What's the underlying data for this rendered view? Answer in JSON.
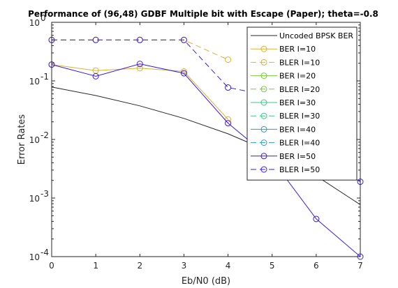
{
  "chart_data": {
    "type": "line",
    "title": "Performance of (96,48) GDBF Multiple bit with Escape (Paper); theta=-0.8",
    "xlabel": "Eb/N0 (dB)",
    "ylabel": "Error Rates",
    "x_scale": "linear",
    "y_scale": "log",
    "xlim": [
      0,
      7
    ],
    "ylim": [
      0.0001,
      1
    ],
    "x_ticks": [
      "0",
      "1",
      "2",
      "3",
      "4",
      "5",
      "6",
      "7"
    ],
    "y_ticks": [
      {
        "base": "10",
        "exp": "0"
      },
      {
        "base": "10",
        "exp": "-1"
      },
      {
        "base": "10",
        "exp": "-2"
      },
      {
        "base": "10",
        "exp": "-3"
      },
      {
        "base": "10",
        "exp": "-4"
      }
    ],
    "grid": false,
    "legend_position": "top-right",
    "series": [
      {
        "name": "Uncoded BPSK BER",
        "color": "#262626",
        "style": "solid",
        "marker": "none",
        "x": [
          0,
          1,
          2,
          3,
          4,
          5,
          6,
          7
        ],
        "y": [
          0.0786,
          0.0563,
          0.0375,
          0.0229,
          0.0125,
          0.00595,
          0.00239,
          0.00077
        ]
      },
      {
        "name": "BER I=10",
        "color": "#D9B233",
        "style": "solid",
        "marker": "circle",
        "x": [
          0,
          1,
          2,
          3,
          4,
          5,
          6,
          7
        ],
        "y": [
          0.19,
          0.15,
          0.165,
          0.145,
          0.022,
          null,
          null,
          null
        ]
      },
      {
        "name": "BLER I=10",
        "color": "#D9B233",
        "style": "dashed",
        "marker": "circle",
        "x": [
          0,
          1,
          2,
          3,
          4,
          5,
          6,
          7
        ],
        "y": [
          0.5,
          0.5,
          0.5,
          0.5,
          0.23,
          null,
          null,
          null
        ]
      },
      {
        "name": "BER I=20",
        "color": "#77C83A",
        "style": "solid",
        "marker": "circle",
        "x": [],
        "y": []
      },
      {
        "name": "BLER I=20",
        "color": "#77C83A",
        "style": "dashed",
        "marker": "circle",
        "x": [],
        "y": []
      },
      {
        "name": "BER I=30",
        "color": "#3CC886",
        "style": "solid",
        "marker": "circle",
        "x": [],
        "y": []
      },
      {
        "name": "BLER I=30",
        "color": "#3CC886",
        "style": "dashed",
        "marker": "circle",
        "x": [],
        "y": []
      },
      {
        "name": "BER I=40",
        "color": "#2F9BB8",
        "style": "solid",
        "marker": "circle",
        "x": [],
        "y": []
      },
      {
        "name": "BLER I=40",
        "color": "#2F9BB8",
        "style": "dashed",
        "marker": "circle",
        "x": [],
        "y": []
      },
      {
        "name": "BER I=50",
        "color": "#3A1CD6",
        "style": "solid",
        "marker": "circle",
        "x": [
          0,
          1,
          2,
          3,
          4,
          5,
          6,
          7
        ],
        "y": [
          0.19,
          0.12,
          0.195,
          0.135,
          0.019,
          0.0045,
          0.00044,
          0.0001
        ]
      },
      {
        "name": "BLER I=50",
        "color": "#3A1CD6",
        "style": "dashed",
        "marker": "circle",
        "x": [
          0,
          1,
          2,
          3,
          4,
          5,
          6,
          7
        ],
        "y": [
          0.5,
          0.5,
          0.5,
          0.5,
          0.077,
          0.055,
          0.0052,
          0.0019
        ]
      }
    ]
  }
}
